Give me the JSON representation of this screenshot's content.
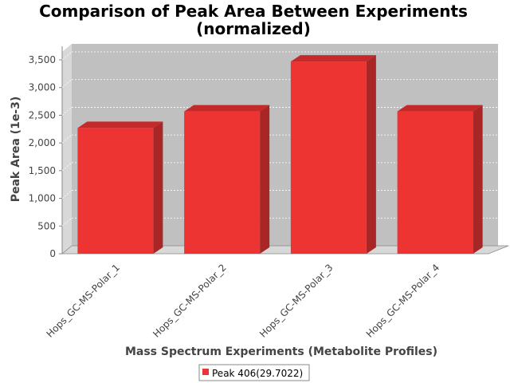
{
  "chart_data": {
    "type": "bar",
    "title": "Comparison of Peak Area Between Experiments",
    "subtitle": "(normalized)",
    "xlabel": "Mass Spectrum Experiments (Metabolite Profiles)",
    "ylabel": "Peak Area (1e-3)",
    "categories": [
      "Hops_GC-MS-Polar_1",
      "Hops_GC-MS-Polar_2",
      "Hops_GC-MS-Polar_3",
      "Hops_GC-MS-Polar_4"
    ],
    "series": [
      {
        "name": "Peak 406(29.7022)",
        "values": [
          2270,
          2570,
          3470,
          2570
        ],
        "color": "#ee3333"
      }
    ],
    "ylim": [
      0,
      3500
    ],
    "yticks": [
      0,
      500,
      1000,
      1500,
      2000,
      2500,
      3000,
      3500
    ],
    "ytick_labels": [
      "0",
      "500",
      "1,000",
      "1,500",
      "2,000",
      "2,500",
      "3,000",
      "3,500"
    ],
    "grid": true,
    "legend_position": "bottom",
    "style": "3d",
    "colors": {
      "plot_background": "#c0c0c0",
      "wall_side": "#d8d8d8",
      "floor": "#d8d8d8",
      "bar_front": "#ee3333",
      "bar_top": "#c52a2a",
      "bar_side": "#a82626"
    }
  }
}
